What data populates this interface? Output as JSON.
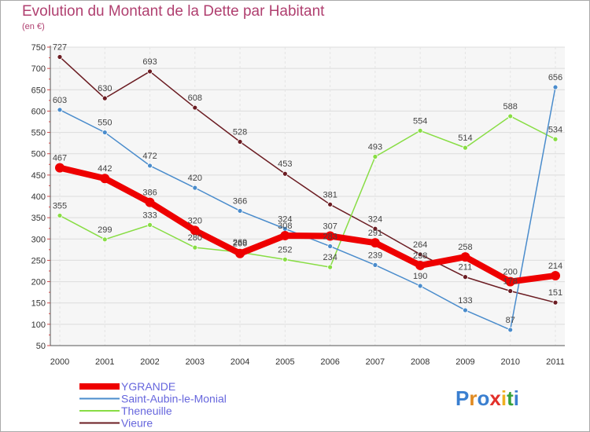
{
  "title": "Evolution du Montant de la Dette par Habitant",
  "subtitle": "(en €)",
  "logo_text": "Proxiti",
  "chart_data": {
    "type": "line",
    "categories": [
      "2000",
      "2001",
      "2002",
      "2003",
      "2004",
      "2005",
      "2006",
      "2007",
      "2008",
      "2009",
      "2010",
      "2011"
    ],
    "ylim": [
      50,
      750
    ],
    "yticks": [
      50,
      100,
      150,
      200,
      250,
      300,
      350,
      400,
      450,
      500,
      550,
      600,
      650,
      700,
      750
    ],
    "grid": true,
    "legend_position": "bottom-left",
    "series": [
      {
        "name": "Vieure",
        "color": "#6b1c22",
        "values": [
          727,
          630,
          693,
          608,
          528,
          453,
          381,
          324,
          264,
          211,
          178,
          151
        ]
      },
      {
        "name": "Theneuille",
        "color": "#88dd44",
        "values": [
          355,
          299,
          333,
          280,
          269,
          252,
          234,
          493,
          554,
          514,
          588,
          534
        ]
      },
      {
        "name": "Saint-Aubin-le-Monial",
        "color": "#4a8ccc",
        "values": [
          603,
          550,
          472,
          420,
          366,
          324,
          283,
          239,
          190,
          133,
          87,
          656
        ]
      },
      {
        "name": "YGRANDE",
        "color": "#ee0000",
        "values": [
          467,
          442,
          386,
          320,
          266,
          308,
          307,
          291,
          238,
          258,
          200,
          214
        ]
      }
    ],
    "legend_order": [
      "YGRANDE",
      "Saint-Aubin-le-Monial",
      "Theneuille",
      "Vieure"
    ]
  }
}
